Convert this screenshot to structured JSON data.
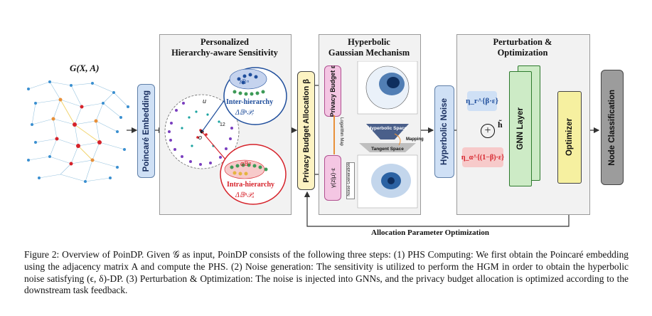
{
  "graph_label": "G(X, A)",
  "poincare_label": "Poincaré Embedding",
  "phs_panel": {
    "title_line1": "Personalized",
    "title_line2": "Hierarchy-aware Sensitivity",
    "inter_label": "Inter-hierarchy",
    "inter_formula": "Δ𝔹ⁿ𝒫ᵣ",
    "intra_label": "Intra-hierarchy",
    "intra_formula": "Δ𝔹ⁿ𝒫ₐ",
    "r_label": "r𝔹ⁿ",
    "alpha_label": "α𝔹ⁿ",
    "u_label": "u",
    "o_label": "o",
    "num_label": "12"
  },
  "privacy_alloc_label": "Privacy Budget Allocation β",
  "hgm_panel": {
    "title_line1": "Hyperbolic",
    "title_line2": "Gaussian Mechanism",
    "privacy_budget_label": "Privacy Budget ε",
    "gamma_label": "γ(z|μ)·ε",
    "log_map_label": "Logarithm Map",
    "noise_gen_label": "Noise Generation",
    "hyperbolic_space": "Hyperbolic Space",
    "tangent_space": "Tangent Space",
    "mapping": "Mapping"
  },
  "hyperbolic_noise_label": "Hyperbolic Noise",
  "po_panel": {
    "title_line1": "Perturbation &",
    "title_line2": "Optimization",
    "eta_r": "η_r^{β·ε}",
    "eta_a": "η_α^{(1−β)·ε}",
    "h_label": "h̃",
    "gnn_label": "GNN Layer",
    "optimizer_label": "Optimizer"
  },
  "node_class_label": "Node Classification",
  "bottom_label": "Allocation Parameter Optimization",
  "caption": "Figure 2: Overview of PoinDP. Given 𝒢 as input, PoinDP consists of the following three steps: (1) PHS Computing: We first obtain the Poincaré embedding using the adjacency matrix A and compute the PHS. (2) Noise generation: The sensitivity is utilized to perform the HGM in order to obtain the hyperbolic noise satisfying (ϵ, δ)-DP. (3) Perturbation & Optimization: The noise is injected into GNNs, and the privacy budget allocation is optimized according to the downstream task feedback.",
  "colors": {
    "inter_blue": "#1f4e9c",
    "intra_red": "#d6222a",
    "poincare_box": "#cfe0f5",
    "alloc_box": "#fdf3c2",
    "budget_box": "#f4c6e3",
    "gnn_box": "#cdebc6",
    "opt_box": "#f6f0a0",
    "node_box": "#9c9c9c"
  }
}
